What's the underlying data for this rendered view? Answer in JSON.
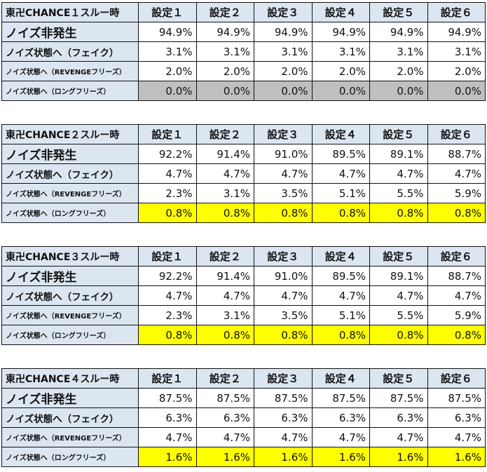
{
  "settings": [
    "設定１",
    "設定２",
    "設定３",
    "設定４",
    "設定５",
    "設定６"
  ],
  "row_labels": [
    "ノイズ非発生",
    "ノイズ状態へ（フェイク）",
    "ノイズ状態へ（REVENGEフリーズ）",
    "ノイズ状態へ（ロングフリーズ）"
  ],
  "colors": {
    "label_bg": "#dce6f1",
    "gray": "#bfbfbf",
    "yellow": "#ffff00"
  },
  "tables": [
    {
      "title": "東卍CHANCE１スルー時",
      "last_row_highlight": "gray",
      "rows": [
        [
          "94.9%",
          "94.9%",
          "94.9%",
          "94.9%",
          "94.9%",
          "94.9%"
        ],
        [
          "3.1%",
          "3.1%",
          "3.1%",
          "3.1%",
          "3.1%",
          "3.1%"
        ],
        [
          "2.0%",
          "2.0%",
          "2.0%",
          "2.0%",
          "2.0%",
          "2.0%"
        ],
        [
          "0.0%",
          "0.0%",
          "0.0%",
          "0.0%",
          "0.0%",
          "0.0%"
        ]
      ]
    },
    {
      "title": "東卍CHANCE２スルー時",
      "last_row_highlight": "yellow",
      "rows": [
        [
          "92.2%",
          "91.4%",
          "91.0%",
          "89.5%",
          "89.1%",
          "88.7%"
        ],
        [
          "4.7%",
          "4.7%",
          "4.7%",
          "4.7%",
          "4.7%",
          "4.7%"
        ],
        [
          "2.3%",
          "3.1%",
          "3.5%",
          "5.1%",
          "5.5%",
          "5.9%"
        ],
        [
          "0.8%",
          "0.8%",
          "0.8%",
          "0.8%",
          "0.8%",
          "0.8%"
        ]
      ]
    },
    {
      "title": "東卍CHANCE３スルー時",
      "last_row_highlight": "yellow",
      "rows": [
        [
          "92.2%",
          "91.4%",
          "91.0%",
          "89.5%",
          "89.1%",
          "88.7%"
        ],
        [
          "4.7%",
          "4.7%",
          "4.7%",
          "4.7%",
          "4.7%",
          "4.7%"
        ],
        [
          "2.3%",
          "3.1%",
          "3.5%",
          "5.1%",
          "5.5%",
          "5.9%"
        ],
        [
          "0.8%",
          "0.8%",
          "0.8%",
          "0.8%",
          "0.8%",
          "0.8%"
        ]
      ]
    },
    {
      "title": "東卍CHANCE４スルー時",
      "last_row_highlight": "yellow",
      "rows": [
        [
          "87.5%",
          "87.5%",
          "87.5%",
          "87.5%",
          "87.5%",
          "87.5%"
        ],
        [
          "6.3%",
          "6.3%",
          "6.3%",
          "6.3%",
          "6.3%",
          "6.3%"
        ],
        [
          "4.7%",
          "4.7%",
          "4.7%",
          "4.7%",
          "4.7%",
          "4.7%"
        ],
        [
          "1.6%",
          "1.6%",
          "1.6%",
          "1.6%",
          "1.6%",
          "1.6%"
        ]
      ]
    }
  ]
}
